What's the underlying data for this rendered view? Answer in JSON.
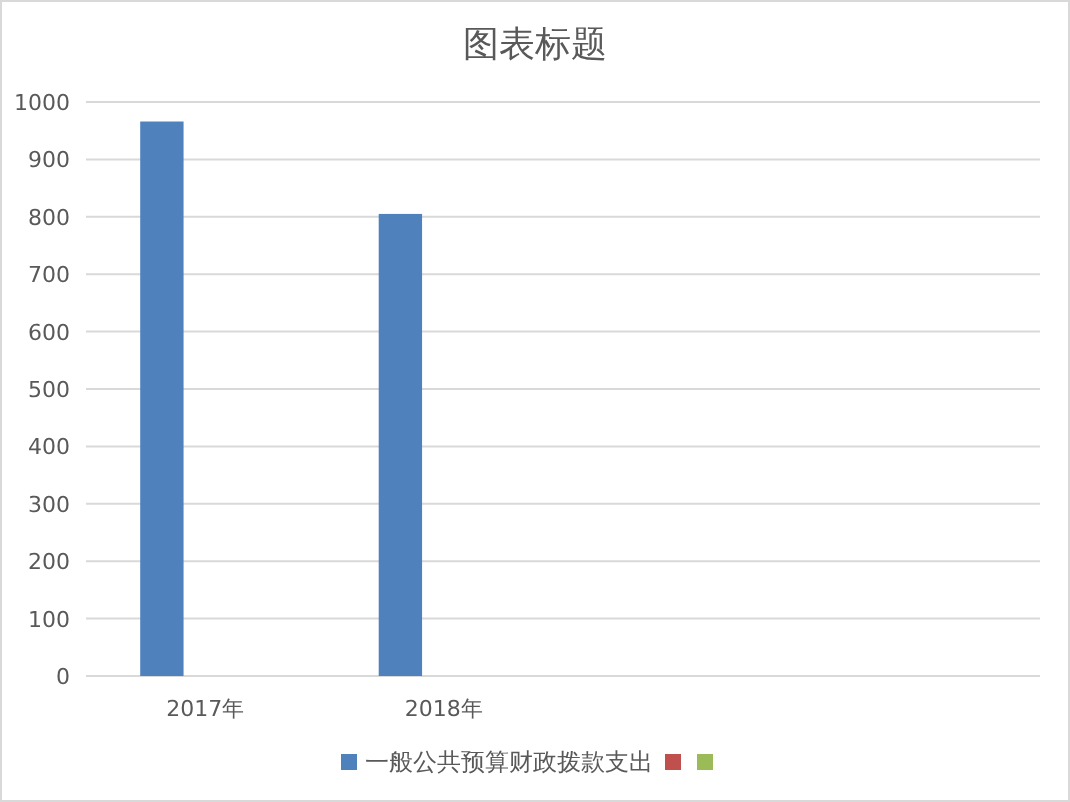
{
  "chart_data": {
    "type": "bar",
    "title": "图表标题",
    "categories": [
      "2017年",
      "2018年",
      null,
      null
    ],
    "series": [
      {
        "name": "一般公共预算财政拨款支出",
        "color": "#4f81bd",
        "values": [
          966,
          805,
          null,
          null
        ]
      },
      {
        "color": "#c0504d",
        "values": [
          null,
          null,
          null,
          null
        ]
      },
      {
        "color": "#9bbb59",
        "values": [
          null,
          null,
          null,
          null
        ]
      }
    ],
    "ylim": [
      0,
      1000
    ],
    "yticks": [
      0,
      100,
      200,
      300,
      400,
      500,
      600,
      700,
      800,
      900,
      1000
    ],
    "grid": "y",
    "legend": "bottom"
  }
}
